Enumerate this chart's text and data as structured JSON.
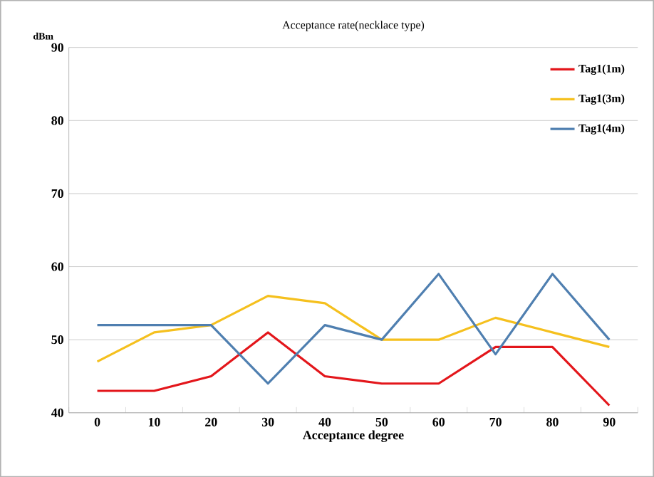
{
  "chart_data": {
    "type": "line",
    "title": "Acceptance rate(necklace type)",
    "xlabel": "Acceptance degree",
    "ylabel": "dBm",
    "categories": [
      "0",
      "10",
      "20",
      "30",
      "40",
      "50",
      "60",
      "70",
      "80",
      "90"
    ],
    "series": [
      {
        "name": "Tag1(1m)",
        "color": "#e3161b",
        "values": [
          43,
          43,
          45,
          51,
          45,
          44,
          44,
          49,
          49,
          41
        ]
      },
      {
        "name": "Tag1(3m)",
        "color": "#f5c01e",
        "values": [
          47,
          51,
          52,
          56,
          55,
          50,
          50,
          53,
          51,
          49
        ]
      },
      {
        "name": "Tag1(4m)",
        "color": "#4f7fb0",
        "values": [
          52,
          52,
          52,
          44,
          52,
          50,
          59,
          48,
          59,
          50
        ]
      }
    ],
    "ylim": [
      40,
      90
    ],
    "yticks": [
      40,
      50,
      60,
      70,
      80,
      90
    ],
    "grid": "y",
    "legend": "top right",
    "marker": "none"
  }
}
